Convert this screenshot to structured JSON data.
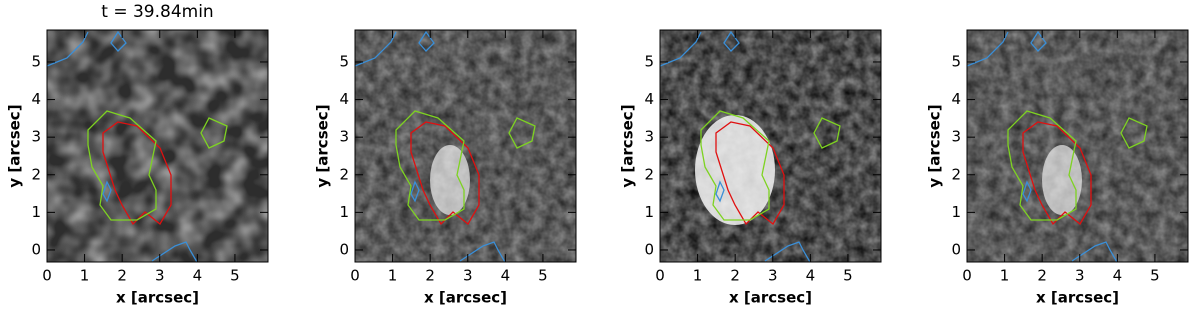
{
  "chart_data": [
    {
      "type": "heatmap",
      "title": "t = 39.84min",
      "x_label": "x [arcsec]",
      "y_label": "y [arcsec]",
      "xlim": [
        0,
        5.88
      ],
      "ylim": [
        -0.32,
        5.85
      ],
      "xticks": [
        0,
        1,
        2,
        3,
        4,
        5
      ],
      "yticks": [
        0,
        1,
        2,
        3,
        4,
        5
      ]
    },
    {
      "type": "heatmap",
      "x_label": "x [arcsec]",
      "y_label": "y [arcsec]",
      "xlim": [
        0,
        5.88
      ],
      "ylim": [
        -0.32,
        5.85
      ],
      "xticks": [
        0,
        1,
        2,
        3,
        4,
        5
      ],
      "yticks": [
        0,
        1,
        2,
        3,
        4,
        5
      ]
    },
    {
      "type": "heatmap",
      "x_label": "x [arcsec]",
      "y_label": "y [arcsec]",
      "xlim": [
        0,
        5.88
      ],
      "ylim": [
        -0.32,
        5.85
      ],
      "xticks": [
        0,
        1,
        2,
        3,
        4,
        5
      ],
      "yticks": [
        0,
        1,
        2,
        3,
        4,
        5
      ]
    },
    {
      "type": "heatmap",
      "x_label": "x [arcsec]",
      "y_label": "y [arcsec]",
      "xlim": [
        0,
        5.88
      ],
      "ylim": [
        -0.32,
        5.85
      ],
      "xticks": [
        0,
        1,
        2,
        3,
        4,
        5
      ],
      "yticks": [
        0,
        1,
        2,
        3,
        4,
        5
      ]
    }
  ]
}
